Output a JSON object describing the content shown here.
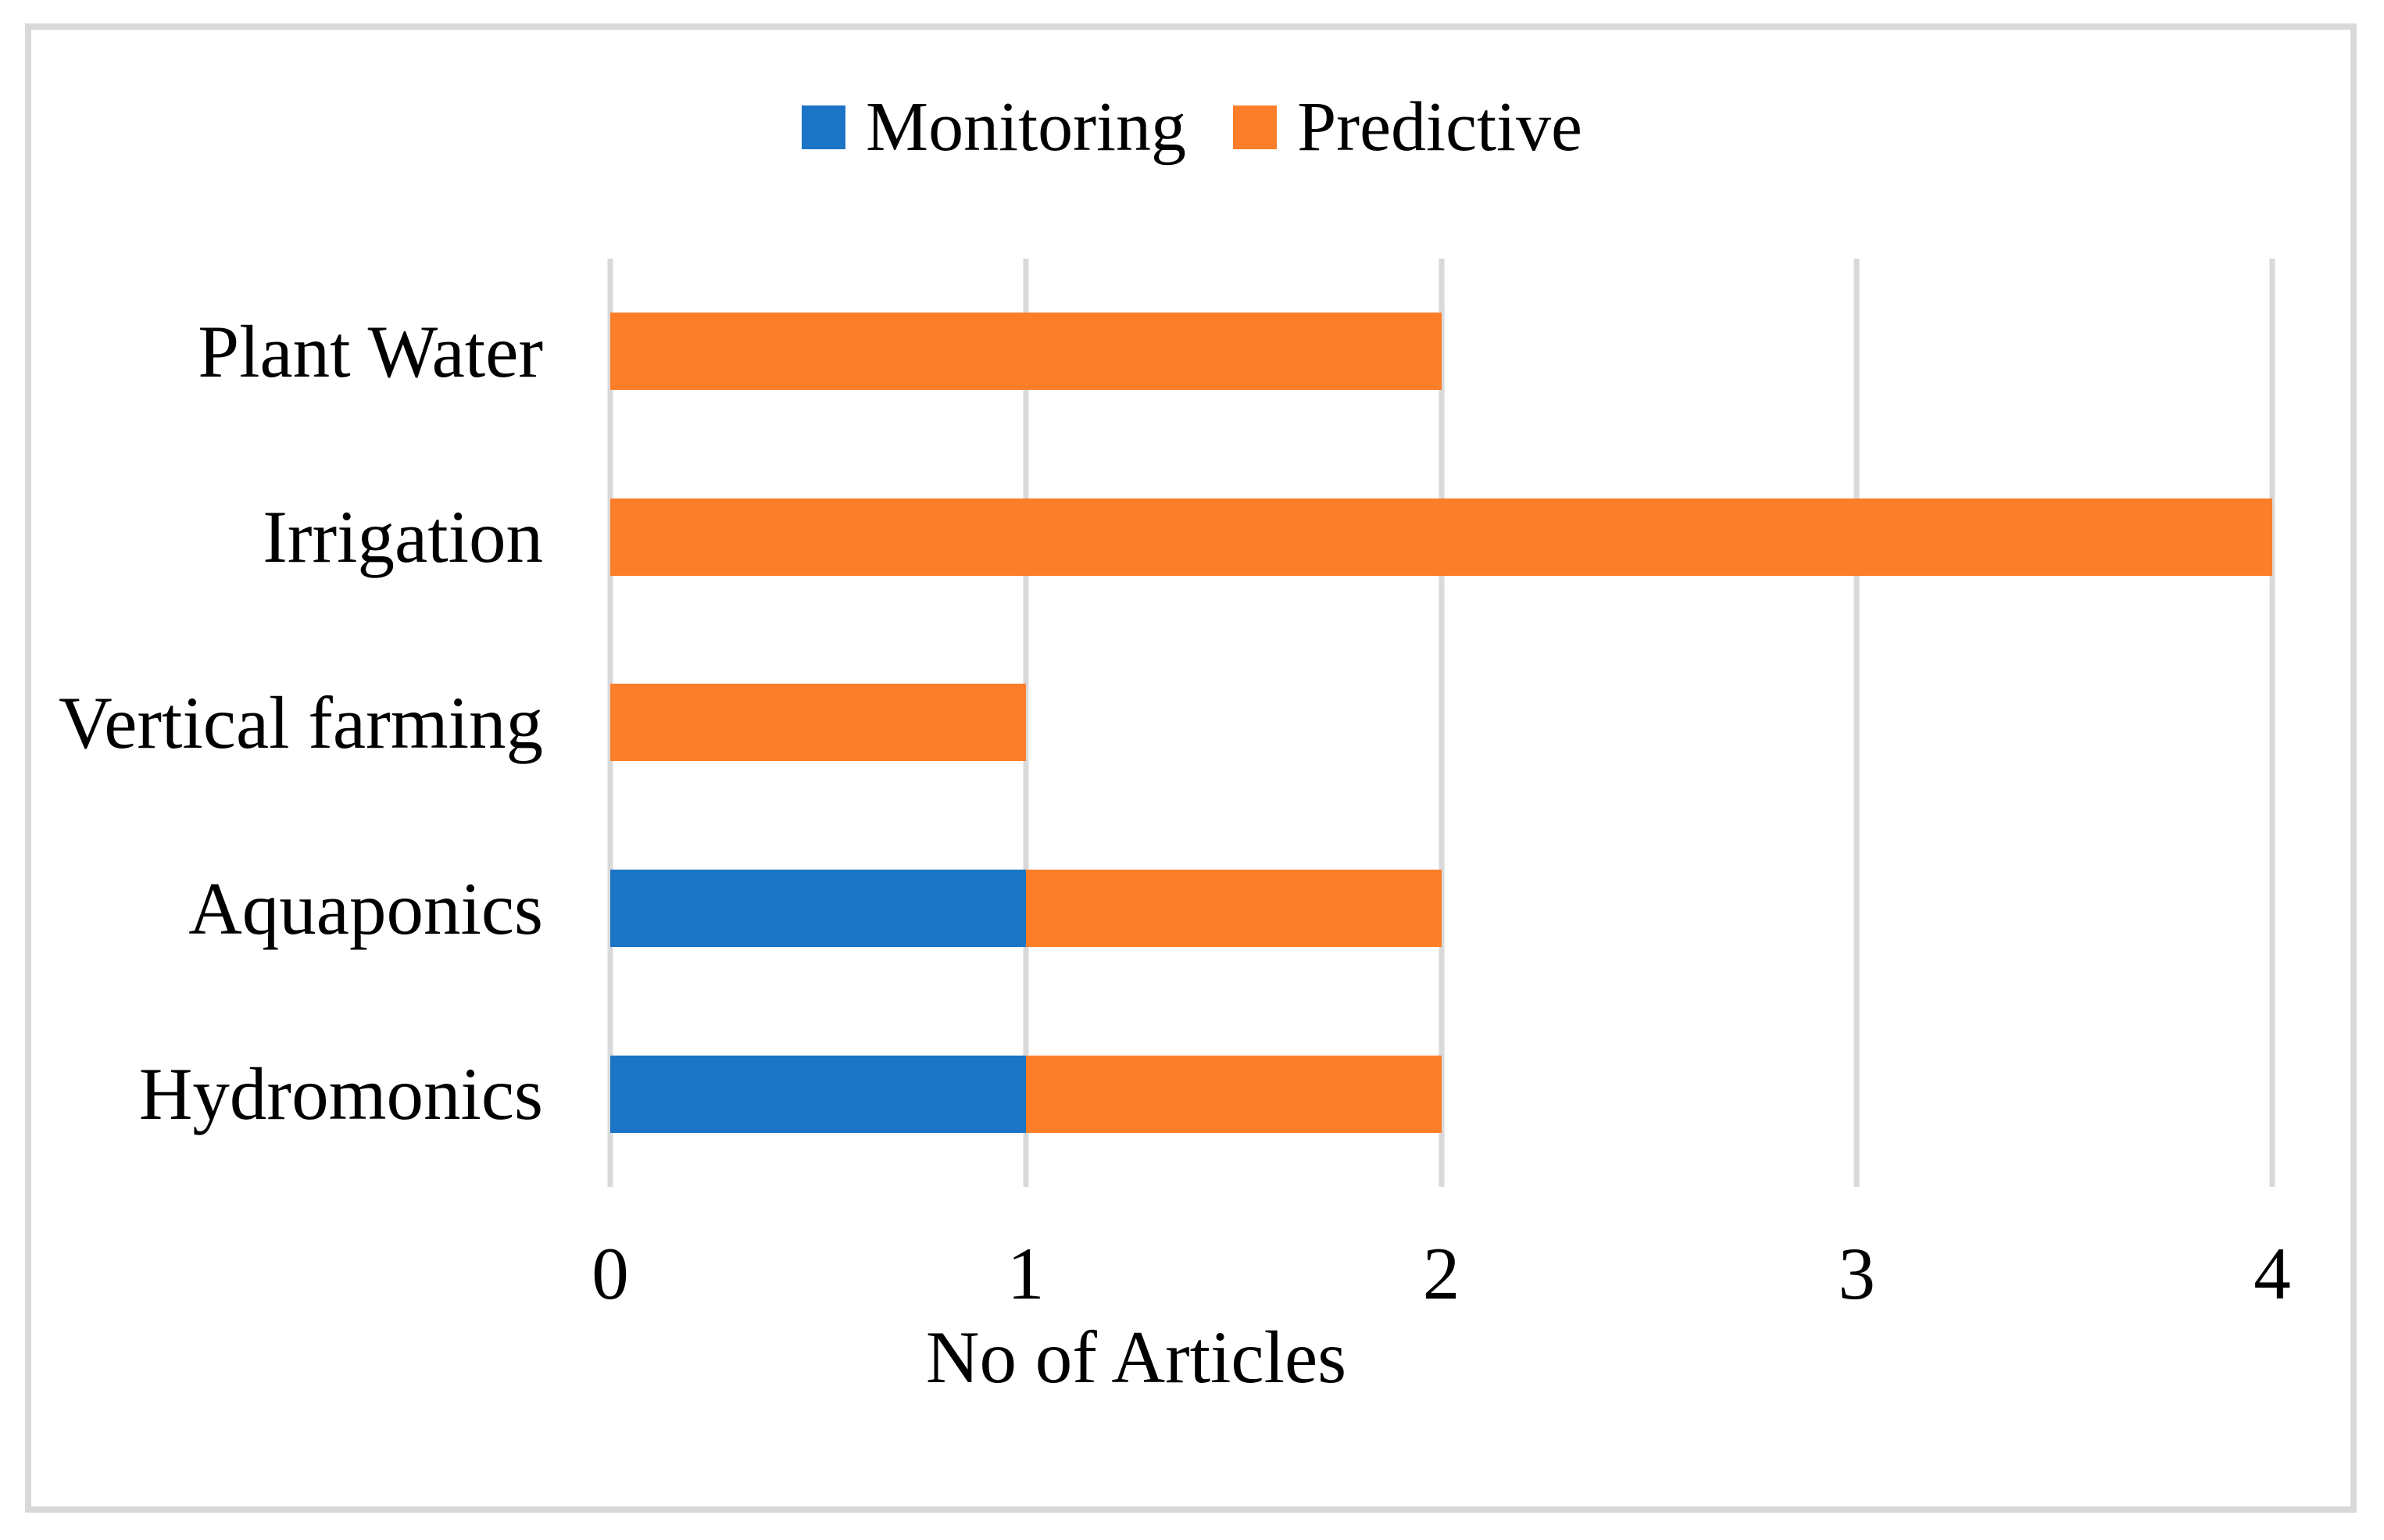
{
  "figure": {
    "frame_border_color": "#d9d9d9",
    "background_color": "#ffffff",
    "text_color": "#000000",
    "gridline_color": "#d9d9d9"
  },
  "legend": {
    "items": [
      {
        "label": "Monitoring",
        "color": "#1b74c5"
      },
      {
        "label": "Predictive",
        "color": "#fc7e28"
      }
    ]
  },
  "chart_data": {
    "type": "bar",
    "orientation": "horizontal",
    "stacked": true,
    "title": "",
    "xlabel": "No of Articles",
    "ylabel": "",
    "categories": [
      "Plant Water",
      "Irrigation",
      "Vertical farming",
      "Aquaponics",
      "Hydromonics"
    ],
    "series": [
      {
        "name": "Monitoring",
        "color": "#1b74c5",
        "values": [
          0,
          0,
          0,
          1,
          1
        ]
      },
      {
        "name": "Predictive",
        "color": "#fc7e28",
        "values": [
          2,
          4,
          1,
          1,
          1
        ]
      }
    ],
    "xlim": [
      0,
      4
    ],
    "x_ticks": [
      "0",
      "1",
      "2",
      "3",
      "4"
    ],
    "grid": true,
    "legend_position": "top-center"
  }
}
